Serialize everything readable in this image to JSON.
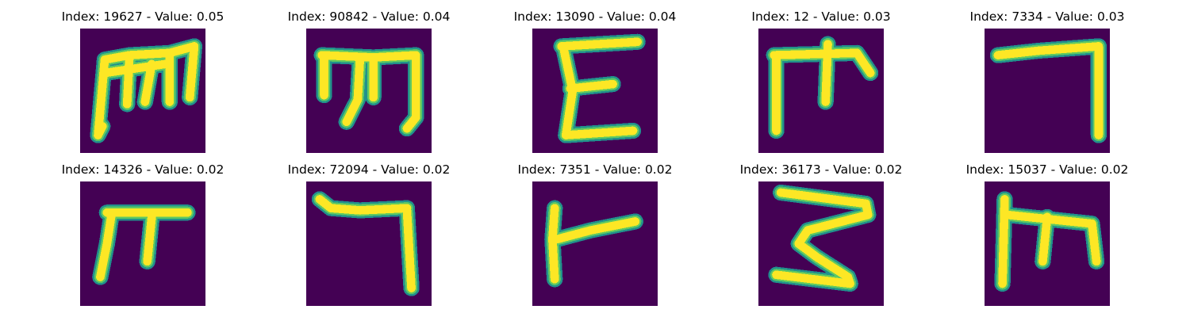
{
  "colors": {
    "background": "#440154",
    "edge_dark": "#21918c",
    "edge_light": "#5ec962",
    "stroke": "#fde725"
  },
  "panels": [
    {
      "index": "19627",
      "value": "0.05",
      "title": "Index: 19627 - Value: 0.05",
      "glyph": "m-shape"
    },
    {
      "index": "90842",
      "value": "0.04",
      "title": "Index: 90842 - Value: 0.04",
      "glyph": "m-shape-thin"
    },
    {
      "index": "13090",
      "value": "0.04",
      "title": "Index: 13090 - Value: 0.04",
      "glyph": "e-shape"
    },
    {
      "index": "12",
      "value": "0.03",
      "title": "Index: 12 - Value: 0.03",
      "glyph": "pi-cross-shape"
    },
    {
      "index": "7334",
      "value": "0.03",
      "title": "Index: 7334 - Value: 0.03",
      "glyph": "seven-hook-shape"
    },
    {
      "index": "14326",
      "value": "0.02",
      "title": "Index: 14326 - Value: 0.02",
      "glyph": "pi-shape"
    },
    {
      "index": "72094",
      "value": "0.02",
      "title": "Index: 72094 - Value: 0.02",
      "glyph": "seven-hook-shape-2"
    },
    {
      "index": "7351",
      "value": "0.02",
      "title": "Index: 7351 - Value: 0.02",
      "glyph": "f-shape"
    },
    {
      "index": "36173",
      "value": "0.02",
      "title": "Index: 36173 - Value: 0.02",
      "glyph": "z-three-shape"
    },
    {
      "index": "15037",
      "value": "0.02",
      "title": "Index: 15037 - Value: 0.02",
      "glyph": "m-shape-2"
    }
  ]
}
